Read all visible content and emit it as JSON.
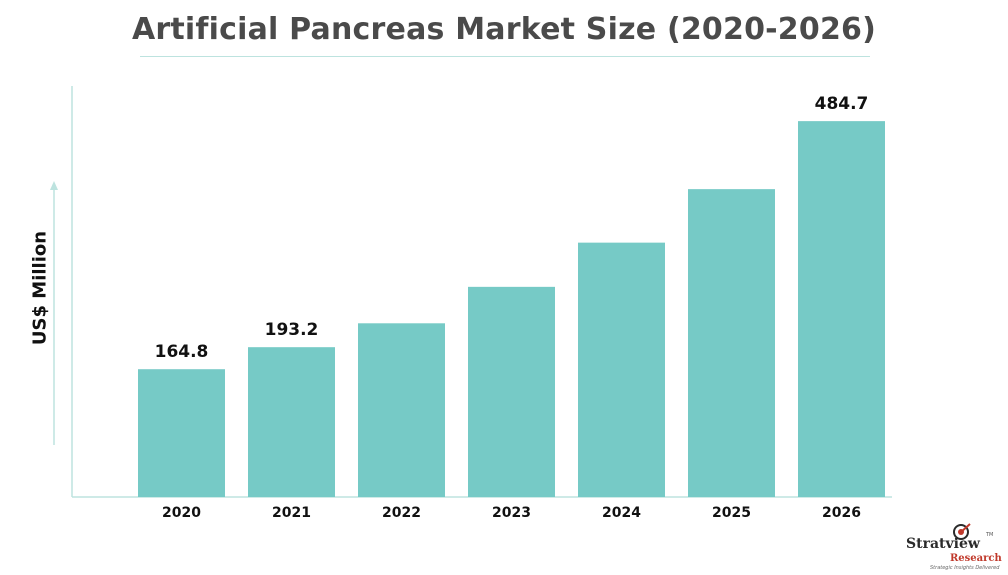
{
  "chart_data": {
    "type": "bar",
    "title": "Artificial Pancreas Market Size (2020-2026)",
    "ylabel": "US$ Million",
    "xlabel": "",
    "categories": [
      "2020",
      "2021",
      "2022",
      "2023",
      "2024",
      "2025",
      "2026"
    ],
    "values": [
      164.8,
      193.2,
      224.0,
      271.0,
      328.0,
      397.0,
      484.7
    ],
    "data_labels": [
      "164.8",
      "193.2",
      "",
      "",
      "",
      "",
      "484.7"
    ],
    "ylim": [
      0,
      530
    ],
    "grid": false,
    "legend": "none",
    "colors": {
      "bar": "#76cac6",
      "axis": "#bde3df",
      "label": "#111111",
      "title": "#4a4a4a"
    }
  },
  "logo": {
    "name": "Stratview",
    "tm": "TM",
    "sub": "Research",
    "tagline": "Strategic Insights Delivered",
    "icon": "target-icon"
  }
}
